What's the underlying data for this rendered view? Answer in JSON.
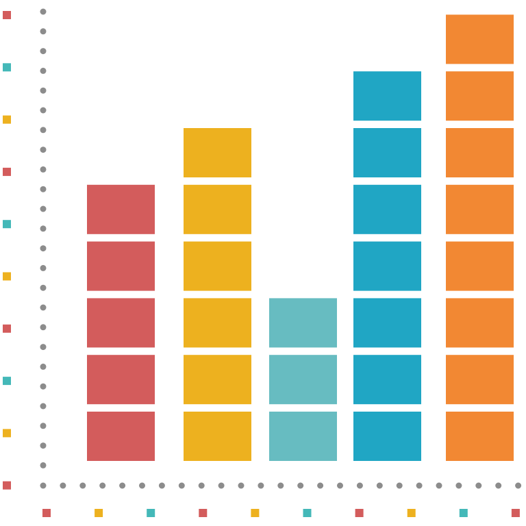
{
  "chart_data": {
    "type": "bar",
    "style": "stacked-block pictograph",
    "title": "",
    "xlabel": "",
    "ylabel": "",
    "ylim": [
      0,
      8
    ],
    "grid": false,
    "legend": "none",
    "categories": [
      "",
      "",
      "",
      "",
      ""
    ],
    "values": [
      5,
      6,
      3,
      7,
      8
    ],
    "colors": [
      "#d35c5c",
      "#edb11f",
      "#67bcc1",
      "#20a6c4",
      "#f28833"
    ],
    "axis_color": "#8c8c8c",
    "y_axis_markers": [
      "#d35c5c",
      "#44b8b8",
      "#edb11f",
      "#d35c5c",
      "#44b8b8",
      "#edb11f",
      "#d35c5c",
      "#44b8b8",
      "#edb11f",
      "#d35c5c"
    ],
    "x_axis_markers": [
      "#d35c5c",
      "#edb11f",
      "#44b8b8",
      "#d35c5c",
      "#edb11f",
      "#44b8b8",
      "#d35c5c",
      "#edb11f",
      "#44b8b8",
      "#d35c5c"
    ]
  }
}
